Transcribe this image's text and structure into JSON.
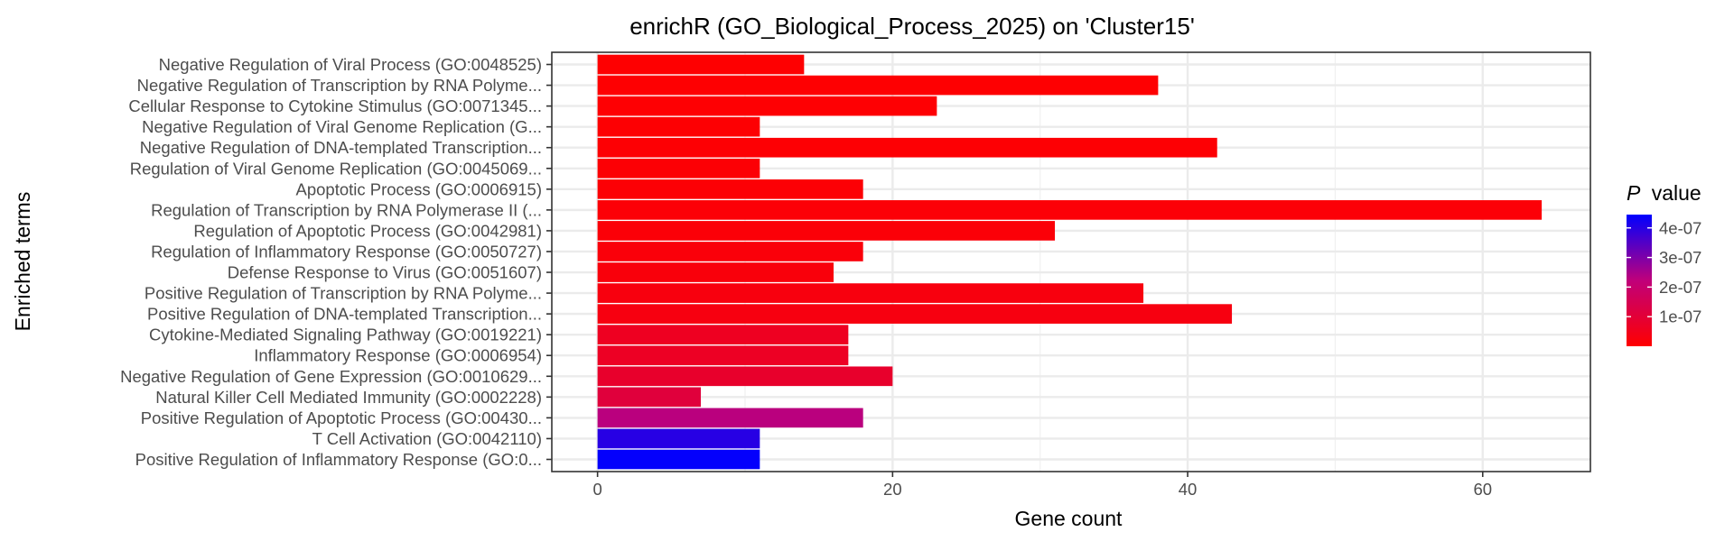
{
  "chart_data": {
    "type": "bar",
    "orientation": "horizontal",
    "title": "enrichR (GO_Biological_Process_2025) on 'Cluster15'",
    "xlabel": "Gene count",
    "ylabel": "Enriched terms",
    "xlim": [
      -3.1,
      67.3
    ],
    "x_ticks": [
      0,
      20,
      40,
      60
    ],
    "grid": true,
    "categories": [
      "Negative Regulation of Viral Process (GO:0048525)",
      "Negative Regulation of Transcription by RNA Polyme...",
      "Cellular Response to Cytokine Stimulus (GO:0071345...",
      "Negative Regulation of Viral Genome Replication (G...",
      "Negative Regulation of DNA-templated Transcription...",
      "Regulation of Viral Genome Replication (GO:0045069...",
      "Apoptotic Process (GO:0006915)",
      "Regulation of Transcription by RNA Polymerase II (...",
      "Regulation of Apoptotic Process (GO:0042981)",
      "Regulation of Inflammatory Response (GO:0050727)",
      "Defense Response to Virus (GO:0051607)",
      "Positive Regulation of Transcription by RNA Polyme...",
      "Positive Regulation of DNA-templated Transcription...",
      "Cytokine-Mediated Signaling Pathway (GO:0019221)",
      "Inflammatory Response (GO:0006954)",
      "Negative Regulation of Gene Expression (GO:0010629...",
      "Natural Killer Cell Mediated Immunity (GO:0002228)",
      "Positive Regulation of Apoptotic Process (GO:00430...",
      "T Cell Activation (GO:0042110)",
      "Positive Regulation of Inflammatory Response (GO:0..."
    ],
    "values": [
      14,
      38,
      23,
      11,
      42,
      11,
      18,
      64,
      31,
      18,
      16,
      37,
      43,
      17,
      17,
      20,
      7,
      18,
      11,
      11
    ],
    "p_values": [
      2e-09,
      3e-09,
      5e-09,
      6e-09,
      8e-09,
      9e-09,
      1e-08,
      1.2e-08,
      1.5e-08,
      1.8e-08,
      2e-08,
      2.5e-08,
      3e-08,
      6e-08,
      6.5e-08,
      8e-08,
      1.1e-07,
      2.3e-07,
      4e-07,
      4.4e-07
    ],
    "legend": {
      "title_italic": "P",
      "title_rest": "value",
      "placement": "right",
      "range": [
        0,
        4.45e-07
      ],
      "ticks": [
        {
          "value": 1e-07,
          "label": "1e-07"
        },
        {
          "value": 2e-07,
          "label": "2e-07"
        },
        {
          "value": 3e-07,
          "label": "3e-07"
        },
        {
          "value": 4e-07,
          "label": "4e-07"
        }
      ],
      "low_color": "#ff0000",
      "high_color": "#0000ff"
    }
  }
}
